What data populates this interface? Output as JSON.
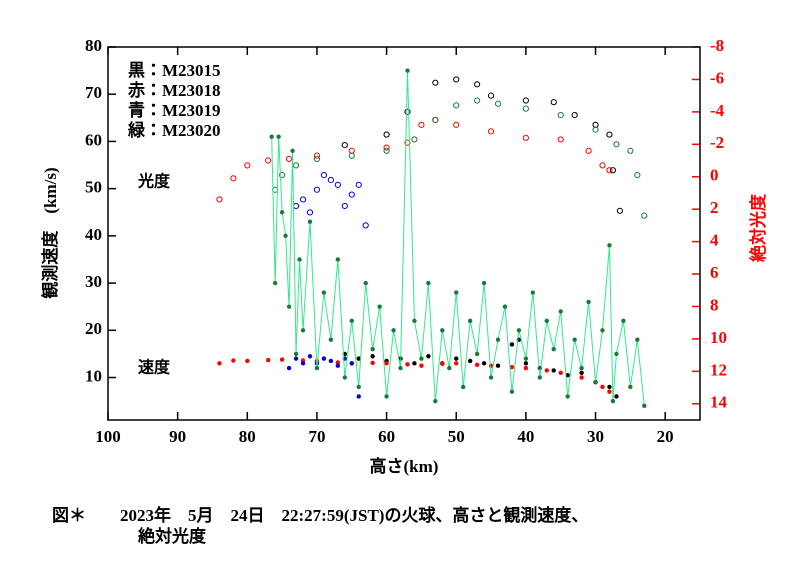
{
  "chart_data": {
    "type": "scatter",
    "xlabel": "高さ(km)",
    "ylabel": "観測速度　(km/s)",
    "y2label": "絶対光度",
    "y2color": "#ff0000",
    "annotations": [
      "光度",
      "速度"
    ],
    "caption": [
      "図＊　　2023年　5月　24日　22:27:59(JST)の火球、高さと観測速度、",
      "絶対光度"
    ],
    "xlim": [
      100,
      15
    ],
    "xticks": [
      100,
      90,
      80,
      70,
      60,
      50,
      40,
      30,
      20
    ],
    "ylim": [
      1,
      80
    ],
    "yticks": [
      10,
      20,
      30,
      40,
      50,
      60,
      70,
      80
    ],
    "y2lim": [
      15,
      -8
    ],
    "y2ticks": [
      -8,
      -6,
      -4,
      -2,
      0,
      2,
      4,
      6,
      8,
      10,
      12,
      14
    ],
    "series": [
      {
        "name": "黒：M23015",
        "color": "#000000",
        "speed": {
          "x": [
            66,
            64,
            62,
            60,
            58,
            56,
            54,
            52,
            50,
            48,
            46,
            44,
            42,
            41,
            40,
            38,
            36,
            34,
            32,
            30,
            28,
            27
          ],
          "values": [
            15,
            14,
            14.5,
            13.5,
            14,
            13,
            14.5,
            13,
            14,
            13.5,
            13,
            12.5,
            17,
            18,
            13,
            12,
            11.5,
            10.5,
            11,
            9,
            8,
            6
          ]
        },
        "magnitude": {
          "x": [
            66,
            60,
            57,
            53,
            50,
            47,
            45,
            40,
            36,
            33,
            30,
            28,
            27.5,
            26.5
          ],
          "values": [
            -1.95,
            -2.6,
            -4,
            -5.8,
            -6,
            -5.7,
            -5,
            -4.7,
            -4.6,
            -3.8,
            -3.2,
            -2.6,
            -0.4,
            2.1
          ]
        }
      },
      {
        "name": "赤：M23018",
        "color": "#ff0000",
        "speed": {
          "x": [
            84,
            82,
            80,
            77,
            75,
            72,
            70,
            67,
            65,
            62,
            60,
            57,
            55,
            52,
            50,
            47,
            45,
            42,
            40,
            37,
            35,
            32,
            30,
            29,
            28
          ],
          "values": [
            13,
            13.6,
            13.5,
            13.7,
            13.8,
            13.6,
            13.5,
            13.2,
            13,
            13.1,
            13,
            12.8,
            12.5,
            12.9,
            13,
            12.7,
            12.5,
            12.2,
            12,
            11.5,
            11,
            10,
            9,
            8,
            7
          ]
        },
        "magnitude": {
          "x": [
            84,
            82,
            80,
            77,
            74,
            70,
            65,
            60,
            57,
            55,
            53,
            50,
            45,
            40,
            35,
            31,
            29,
            28
          ],
          "values": [
            1.4,
            0.1,
            -0.7,
            -1,
            -1.1,
            -1.3,
            -1.6,
            -1.8,
            -2.1,
            -3.2,
            -3.5,
            -3.2,
            -2.8,
            -2.4,
            -2.3,
            -1.6,
            -0.7,
            -0.4
          ]
        }
      },
      {
        "name": "青：M23019",
        "color": "#0000dd",
        "speed": {
          "x": [
            74,
            73,
            72,
            71,
            70,
            69,
            68,
            67,
            66,
            65,
            64
          ],
          "values": [
            12,
            14,
            13,
            14.5,
            13,
            14,
            13.5,
            12.5,
            14,
            13,
            6
          ]
        },
        "magnitude": {
          "x": [
            73,
            72,
            71,
            70,
            69,
            68,
            67,
            66,
            65,
            64,
            63
          ],
          "values": [
            1.8,
            1.4,
            2.2,
            0.8,
            -0.1,
            0.2,
            0.5,
            1.8,
            1.1,
            0.5,
            3
          ]
        }
      },
      {
        "name": "緑：M23020",
        "color": "#1a7a3a",
        "line_color": "#33e88a",
        "speed": {
          "x": [
            76.5,
            76,
            75.5,
            75,
            74.5,
            74,
            73.5,
            73,
            72.5,
            72,
            71,
            70,
            69,
            68,
            67,
            66,
            65,
            64,
            63,
            62,
            61,
            60,
            59,
            58,
            57,
            56,
            55,
            54,
            53,
            52,
            51,
            50,
            49,
            48,
            47,
            46,
            45,
            44,
            43,
            42,
            41,
            40,
            39,
            38,
            37,
            36,
            35,
            34,
            33,
            32,
            31,
            30,
            29,
            28,
            27.5,
            27,
            26,
            25,
            24,
            23
          ],
          "values": [
            61,
            30,
            61,
            45,
            40,
            25,
            58,
            15,
            35,
            20,
            43,
            12,
            28,
            18,
            35,
            10,
            22,
            8,
            30,
            16,
            25,
            6,
            20,
            12,
            75,
            22,
            14,
            30,
            5,
            20,
            12,
            28,
            8,
            22,
            15,
            30,
            10,
            18,
            25,
            7,
            20,
            14,
            28,
            10,
            22,
            16,
            24,
            6,
            18,
            12,
            26,
            9,
            20,
            38,
            5,
            15,
            22,
            8,
            18,
            4
          ]
        },
        "magnitude": {
          "x": [
            76,
            75,
            73,
            70,
            65,
            60,
            56,
            53,
            50,
            47,
            44,
            40,
            35,
            30,
            27,
            25,
            24,
            23
          ],
          "values": [
            0.8,
            -0.1,
            -0.7,
            -1.1,
            -1.3,
            -1.6,
            -2.3,
            -3.5,
            -4.4,
            -4.7,
            -4.5,
            -4.2,
            -3.8,
            -2.9,
            -2,
            -1.6,
            -0.1,
            2.4
          ]
        }
      }
    ]
  }
}
